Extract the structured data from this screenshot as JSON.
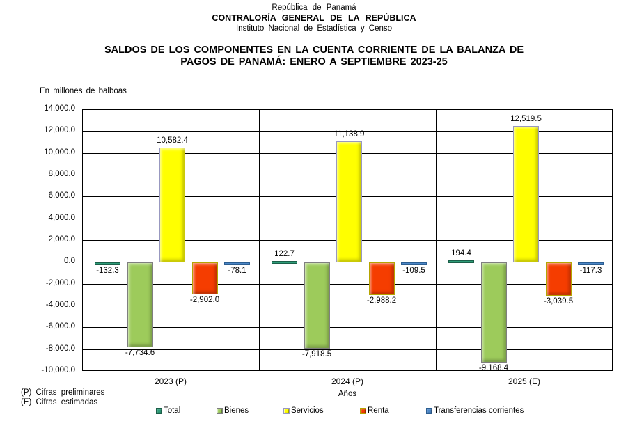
{
  "header": {
    "line1": "República de Panamá",
    "line2": "CONTRALORÍA GENERAL DE LA REPÚBLICA",
    "line3": "Instituto Nacional de Estadística y Censo"
  },
  "title_line1": "SALDOS DE LOS COMPONENTES EN LA CUENTA CORRIENTE DE LA BALANZA DE",
  "title_line2": "PAGOS DE PANAMÁ: ENERO A SEPTIEMBRE 2023-25",
  "unit_label": "En millones de balboas",
  "footnotes": [
    "(P) Cifras preliminares",
    "(E) Cifras estimadas"
  ],
  "chart_data": {
    "type": "bar",
    "title": "SALDOS DE LOS COMPONENTES EN LA CUENTA CORRIENTE DE LA BALANZA DE PAGOS DE PANAMÁ: ENERO A SEPTIEMBRE 2023-25",
    "categories": [
      "2023 (P)",
      "2024 (P)",
      "2025 (E)"
    ],
    "xlabel": "Años",
    "ylabel": "En millones de balboas",
    "ylim": [
      -10000,
      14000
    ],
    "ytick_step": 2000,
    "grid": true,
    "legend_position": "bottom",
    "series": [
      {
        "name": "Total",
        "color": "#2E9C78",
        "border": "#1B5F49",
        "values": [
          -132.3,
          122.7,
          194.4
        ]
      },
      {
        "name": "Bienes",
        "color": "#9DCB5B",
        "border": "#7F7F7F",
        "values": [
          -7734.6,
          -7918.5,
          -9168.4
        ]
      },
      {
        "name": "Servicios",
        "color": "#FFFF00",
        "border": "#9898C0",
        "values": [
          10582.4,
          11138.9,
          12519.5
        ]
      },
      {
        "name": "Renta",
        "color": "#F53D00",
        "border": "#B5A400",
        "values": [
          -2902.0,
          -2988.2,
          -3039.5
        ]
      },
      {
        "name": "Transferencias corrientes",
        "color": "#4C87C7",
        "border": "#2C5E91",
        "values": [
          -78.1,
          -109.5,
          -117.3
        ]
      }
    ]
  }
}
